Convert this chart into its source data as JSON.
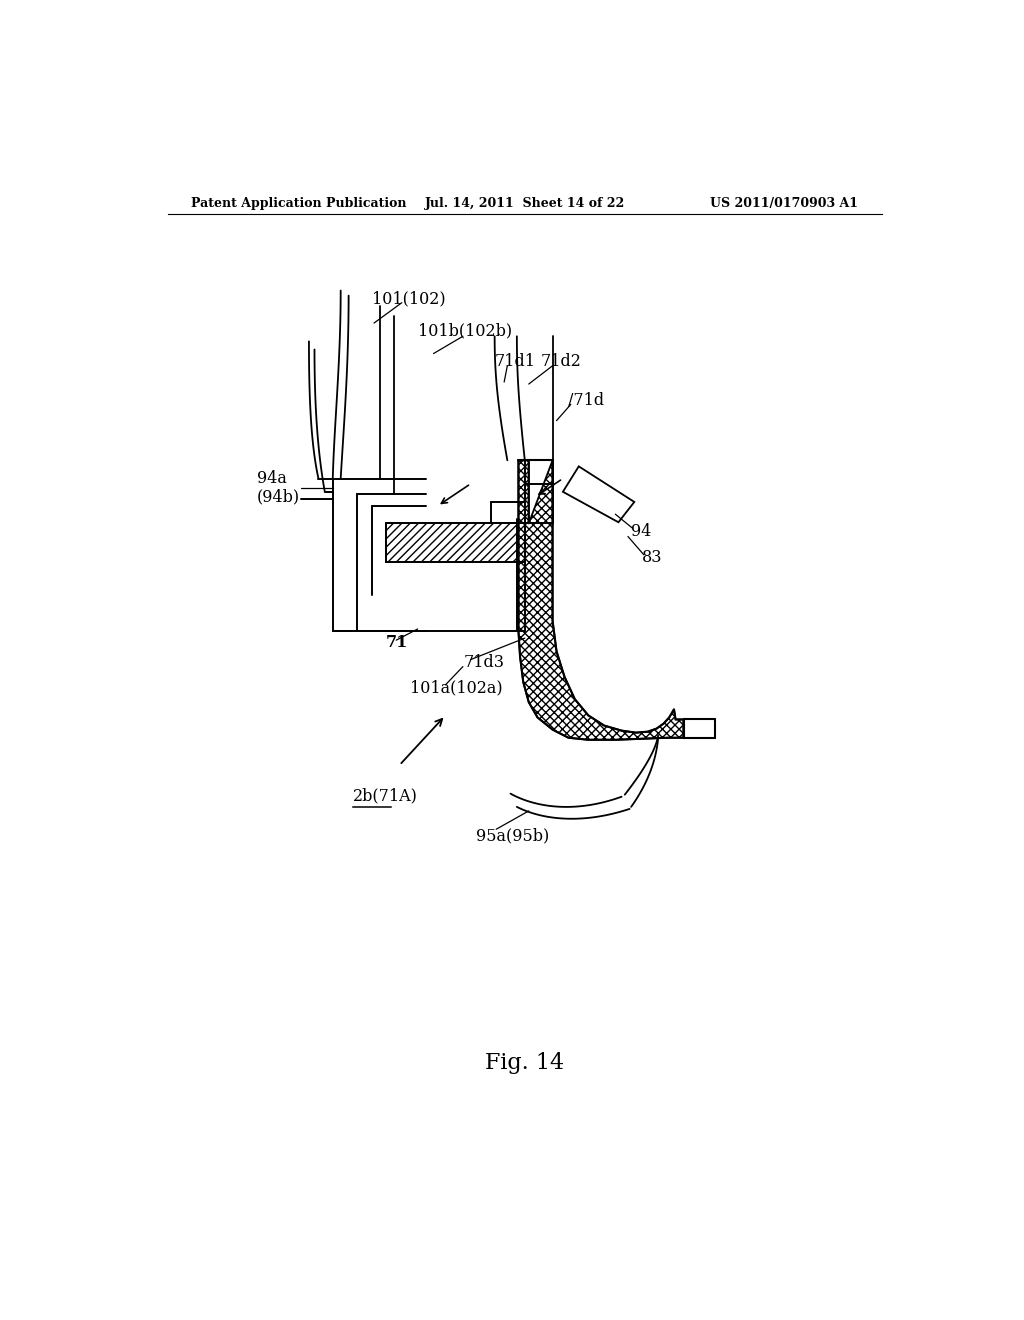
{
  "background_color": "#ffffff",
  "header_left": "Patent Application Publication",
  "header_mid": "Jul. 14, 2011  Sheet 14 of 22",
  "header_right": "US 2011/0170903 A1",
  "fig_label": "Fig. 14"
}
